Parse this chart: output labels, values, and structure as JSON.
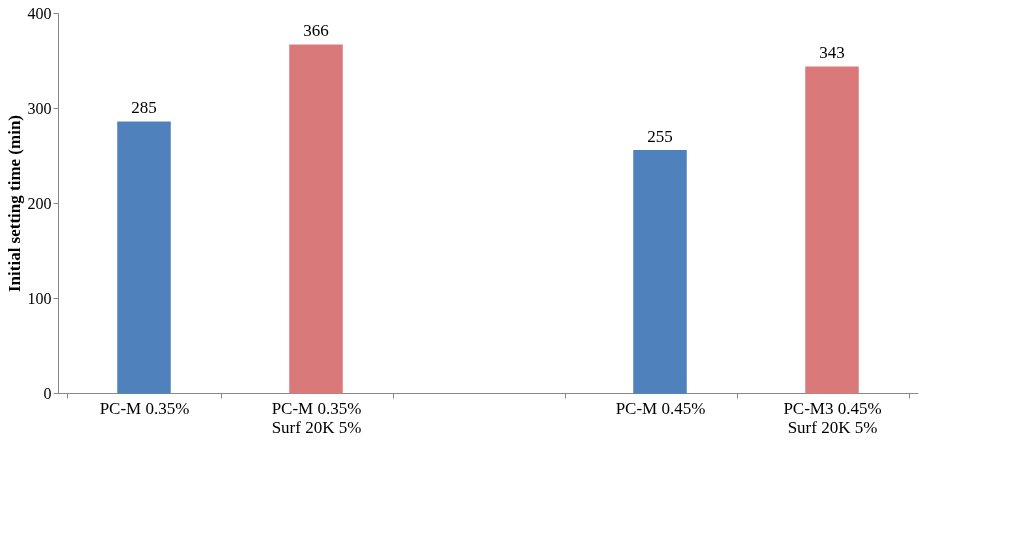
{
  "chart_data": {
    "type": "bar",
    "ylabel": "Initial setting time (min)",
    "categories": [
      "PC-M 0.35%",
      "PC-M 0.35%\nSurf 20K 5%",
      null,
      "PC-M 0.45%",
      "PC-M3 0.45%\nSurf 20K 5%"
    ],
    "values": [
      285,
      366,
      null,
      255,
      343
    ],
    "colors": [
      "#4f81bd",
      "#d9797a",
      null,
      "#4f81bd",
      "#d9797a"
    ],
    "ylim": [
      0,
      400
    ],
    "yticks": [
      0,
      100,
      200,
      300,
      400
    ],
    "grid": false,
    "data_labels": true
  }
}
